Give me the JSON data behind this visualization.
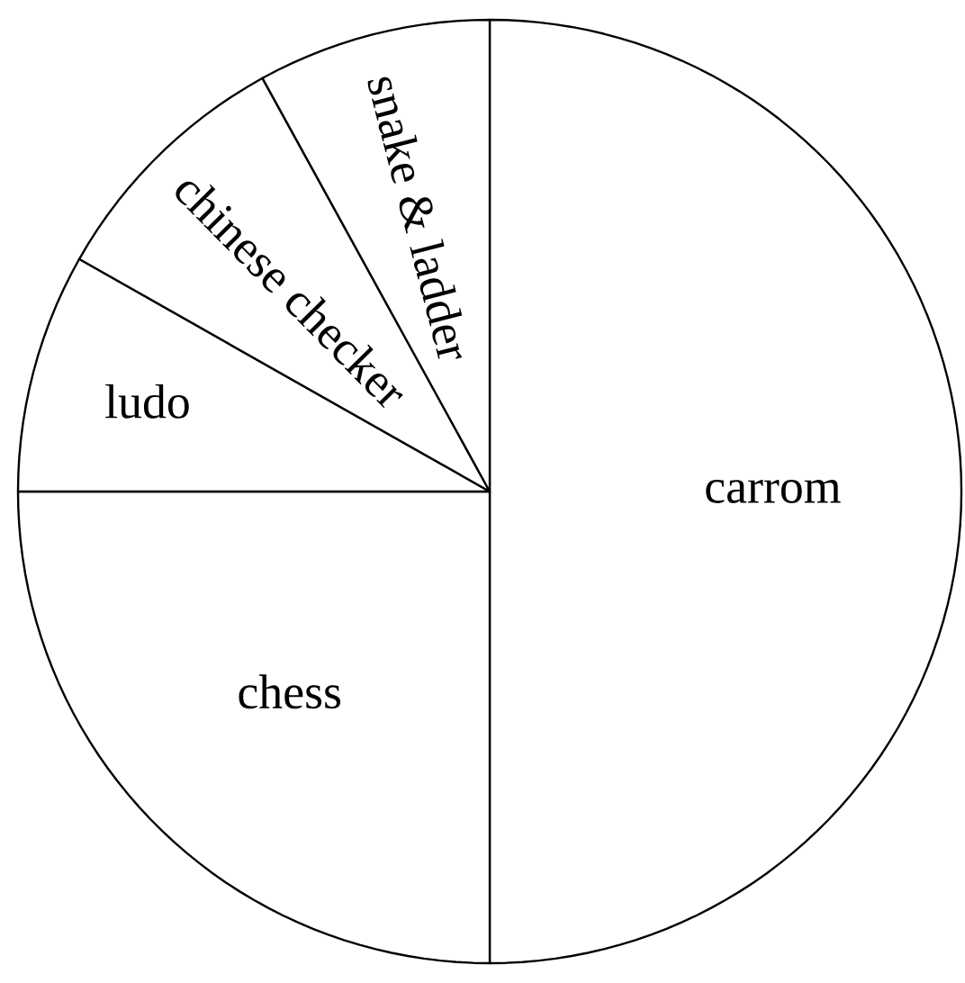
{
  "chart_data": {
    "type": "pie",
    "categories": [
      "carrom",
      "chess",
      "ludo",
      "chinese checker",
      "snake & ladder"
    ],
    "values": [
      50,
      25,
      8.2,
      8.8,
      8
    ],
    "colors": [
      "#ffffff",
      "#ffffff",
      "#ffffff",
      "#ffffff",
      "#ffffff"
    ]
  }
}
